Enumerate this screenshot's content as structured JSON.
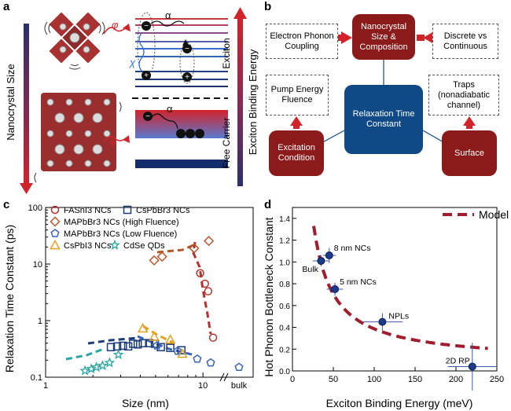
{
  "panels": {
    "a": "a",
    "b": "b",
    "c": "c",
    "d": "d"
  },
  "panel_a": {
    "left_axis_label": "Nanocrystal Size",
    "right_axis_label": "Exciton Binding Energy",
    "exciton_label": "Exciton",
    "free_carrier_label": "Free Carrier",
    "phi": "φ",
    "alpha": "α",
    "chi": "χ"
  },
  "panel_b": {
    "electron_phonon": "Electron Phonon Coupling",
    "nanocrystal": "Nanocrystal Size & Composition",
    "discrete": "Discrete vs Continuous",
    "pump": "Pump Energy Fluence",
    "traps": "Traps (nonadiabatic channel)",
    "relaxation": "Relaxation Time Constant",
    "excitation": "Excitation Condition",
    "surface": "Surface"
  },
  "chart_data": [
    {
      "type": "scatter",
      "xlabel": "Size (nm)",
      "ylabel": "Relaxation Time Constant (ps)",
      "xscale": "log",
      "yscale": "log",
      "xticks": [
        "1",
        "10",
        "bulk"
      ],
      "yticks": [
        "0.1",
        "1",
        "10",
        "100"
      ],
      "legend": [
        "FASnI3 NCs",
        "CsPbBr3 NCs",
        "MAPbBr3 NCs (High Fluence)",
        "MAPbBr3 NCs (Low Fluence)",
        "CsPbI3 NCs",
        "CdSe QDs"
      ],
      "series": [
        {
          "name": "FASnI3 NCs",
          "color": "#b5302e",
          "marker": "circle",
          "points": [
            [
              9.6,
              6.9
            ],
            [
              10.3,
              4.5
            ],
            [
              10.8,
              3.3
            ],
            [
              11.6,
              0.5
            ]
          ]
        },
        {
          "name": "MAPbBr3 NCs (High Fluence)",
          "color": "#b5562a",
          "marker": "diamond",
          "points": [
            [
              4.9,
              11.6
            ],
            [
              5.5,
              13.5
            ],
            [
              8.8,
              19
            ],
            [
              10.9,
              25.6
            ]
          ]
        },
        {
          "name": "CsPbBr3 NCs",
          "color": "#1e3c78",
          "marker": "square",
          "points": [
            [
              2.6,
              0.34
            ],
            [
              2.85,
              0.35
            ],
            [
              3.1,
              0.36
            ],
            [
              3.35,
              0.35
            ],
            [
              3.6,
              0.39
            ],
            [
              3.85,
              0.38
            ],
            [
              4.15,
              0.4
            ],
            [
              4.55,
              0.4
            ],
            [
              4.95,
              0.39
            ],
            [
              5.4,
              0.34
            ],
            [
              6.2,
              0.33
            ],
            [
              7.3,
              0.3
            ]
          ]
        },
        {
          "name": "MAPbBr3 NCs (Low Fluence)",
          "color": "#3a62b8",
          "marker": "pentagon",
          "points": [
            [
              5.1,
              0.36
            ],
            [
              6.9,
              0.29
            ],
            [
              9.2,
              0.21
            ],
            [
              11.2,
              0.18
            ],
            [
              13.5,
              0.15
            ]
          ]
        },
        {
          "name": "CsPbI3 NCs",
          "color": "#e5a020",
          "marker": "triangle",
          "points": [
            [
              4.15,
              0.73
            ],
            [
              4.9,
              0.52
            ],
            [
              6.2,
              0.46
            ],
            [
              7.4,
              0.26
            ]
          ]
        },
        {
          "name": "CdSe QDs",
          "color": "#2aa5a5",
          "marker": "star",
          "points": [
            [
              1.78,
              0.13
            ],
            [
              1.95,
              0.14
            ],
            [
              2.1,
              0.15
            ],
            [
              2.3,
              0.16
            ],
            [
              2.55,
              0.18
            ],
            [
              2.9,
              0.25
            ]
          ]
        }
      ]
    },
    {
      "type": "scatter",
      "xlabel": "Exciton Binding Energy (meV)",
      "ylabel": "Hot Phonon Bottleneck Constant",
      "xlim": [
        0,
        250
      ],
      "ylim": [
        0,
        1.5
      ],
      "xticks": [
        "0",
        "50",
        "100",
        "150",
        "200",
        "250"
      ],
      "yticks": [
        "0.0",
        "0.2",
        "0.4",
        "0.6",
        "0.8",
        "1.0",
        "1.2",
        "1.4"
      ],
      "legend": [
        "Model"
      ],
      "series": [
        {
          "name": "data",
          "color": "#1e3a8a",
          "points": [
            {
              "x": 35,
              "y": 1.01,
              "label": "Bulk"
            },
            {
              "x": 45,
              "y": 1.06,
              "label": "8 nm NCs"
            },
            {
              "x": 52,
              "y": 0.75,
              "label": "5 nm NCs"
            },
            {
              "x": 110,
              "y": 0.45,
              "label": "NPLs"
            },
            {
              "x": 220,
              "y": 0.04,
              "label": "2D RP"
            }
          ]
        }
      ]
    }
  ]
}
